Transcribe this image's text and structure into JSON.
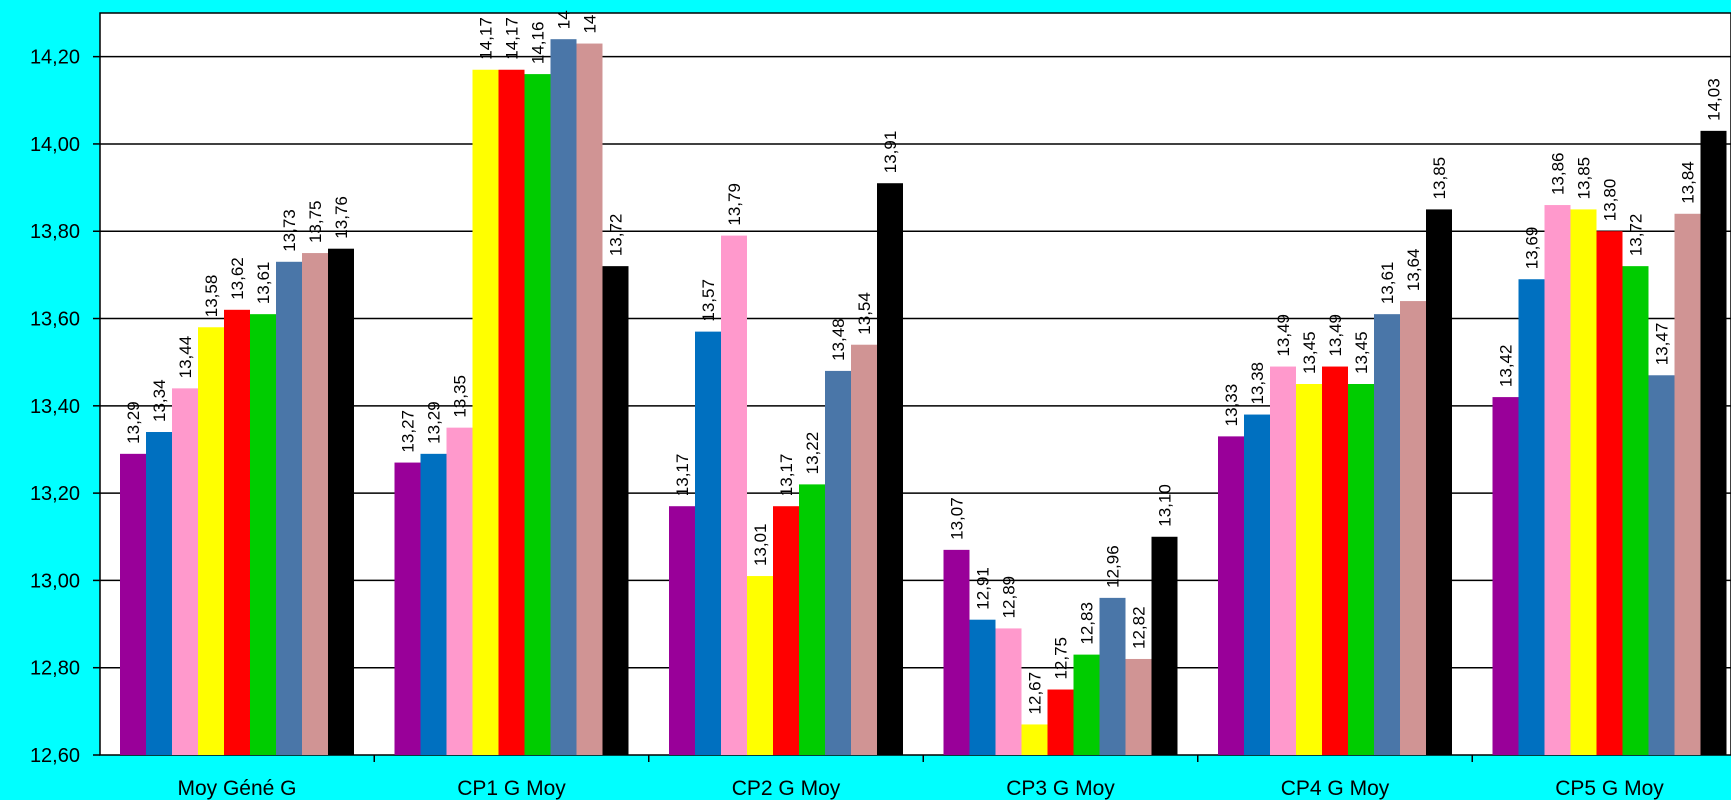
{
  "chart_data": {
    "type": "bar",
    "categories": [
      "Moy Géné G",
      "CP1 G Moy",
      "CP2 G Moy",
      "CP3 G Moy",
      "CP4 G Moy",
      "CP5 G Moy"
    ],
    "series": [
      {
        "color": "#990099",
        "values": [
          13.29,
          13.27,
          13.17,
          13.07,
          13.33,
          13.42
        ]
      },
      {
        "color": "#0070C0",
        "values": [
          13.34,
          13.29,
          13.57,
          12.91,
          13.38,
          13.69
        ]
      },
      {
        "color": "#FF99CC",
        "values": [
          13.44,
          13.35,
          13.79,
          12.89,
          13.49,
          13.86
        ]
      },
      {
        "color": "#FFFF00",
        "values": [
          13.58,
          14.17,
          13.01,
          12.67,
          13.45,
          13.85
        ]
      },
      {
        "color": "#FF0000",
        "values": [
          13.62,
          14.17,
          13.17,
          12.75,
          13.49,
          13.8
        ]
      },
      {
        "color": "#00CC00",
        "values": [
          13.61,
          14.16,
          13.22,
          12.83,
          13.45,
          13.72
        ]
      },
      {
        "color": "#4A76A8",
        "values": [
          13.73,
          14.24,
          13.48,
          12.96,
          13.61,
          13.47
        ]
      },
      {
        "color": "#D09494",
        "values": [
          13.75,
          14.23,
          13.54,
          12.82,
          13.64,
          13.84
        ]
      },
      {
        "color": "#000000",
        "values": [
          13.76,
          13.72,
          13.91,
          13.1,
          13.85,
          14.03
        ]
      }
    ],
    "data_labels": [
      [
        "13,29",
        "13,34",
        "13,44",
        "13,58",
        "13,62",
        "13,61",
        "13,73",
        "13,75",
        "13,76"
      ],
      [
        "13,27",
        "13,29",
        "13,35",
        "14,17",
        "14,17",
        "14,16",
        "14",
        "14",
        "13,72"
      ],
      [
        "13,17",
        "13,57",
        "13,79",
        "13,01",
        "13,17",
        "13,22",
        "13,48",
        "13,54",
        "13,91"
      ],
      [
        "13,07",
        "12,91",
        "12,89",
        "12,67",
        "12,75",
        "12,83",
        "12,96",
        "12,82",
        "13,10"
      ],
      [
        "13,33",
        "13,38",
        "13,49",
        "13,45",
        "13,49",
        "13,45",
        "13,61",
        "13,64",
        "13,85"
      ],
      [
        "13,42",
        "13,69",
        "13,86",
        "13,85",
        "13,80",
        "13,72",
        "13,47",
        "13,84",
        "14,03"
      ]
    ],
    "ylim": [
      12.6,
      14.3
    ],
    "yticks": [
      "12,60",
      "12,80",
      "13,00",
      "13,20",
      "13,40",
      "13,60",
      "13,80",
      "14,00",
      "14,20"
    ],
    "ytick_values": [
      12.6,
      12.8,
      13.0,
      13.2,
      13.4,
      13.6,
      13.8,
      14.0,
      14.2
    ],
    "grid": true,
    "legend": "none",
    "title": "",
    "xlabel": "",
    "ylabel": "",
    "background_color": "#00FFFF",
    "plot_background": "#FFFFFF"
  }
}
